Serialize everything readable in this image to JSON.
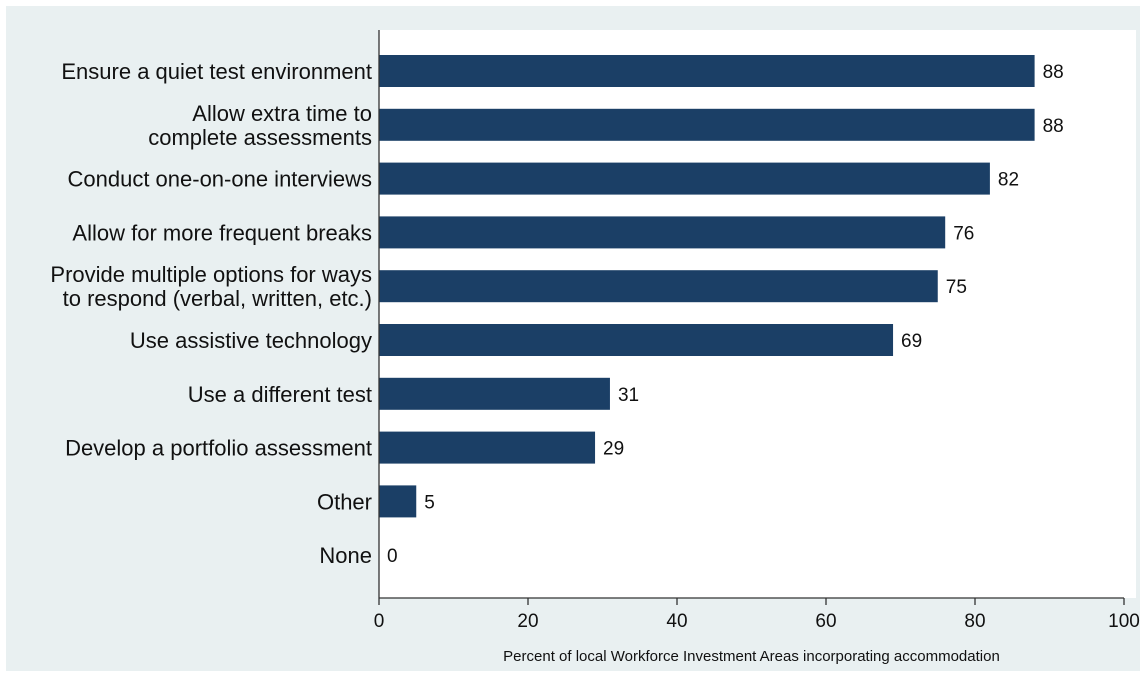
{
  "chart_data": {
    "type": "bar",
    "orientation": "horizontal",
    "categories": [
      [
        "Ensure a quiet test environment"
      ],
      [
        "Allow extra time to",
        "complete assessments"
      ],
      [
        "Conduct one-on-one interviews"
      ],
      [
        "Allow for more frequent breaks"
      ],
      [
        "Provide multiple options for ways",
        "to respond (verbal, written, etc.)"
      ],
      [
        "Use assistive technology"
      ],
      [
        "Use a different test"
      ],
      [
        "Develop a portfolio assessment"
      ],
      [
        "Other"
      ],
      [
        "None"
      ]
    ],
    "values": [
      88,
      88,
      82,
      76,
      75,
      69,
      31,
      29,
      5,
      0
    ],
    "value_labels": [
      "88",
      "88",
      "82",
      "76",
      "75",
      "69",
      "31",
      "29",
      "5",
      "0"
    ],
    "xlabel": "Percent of local Workforce Investment Areas incorporating accommodation",
    "ylabel": "",
    "title": "",
    "xlim": [
      0,
      100
    ],
    "xticks": [
      0,
      20,
      40,
      60,
      80,
      100
    ],
    "grid": false,
    "legend": "none",
    "colors": {
      "bar": "#1b3f66",
      "plot_background": "#ffffff",
      "outer_background": "#e9f0f1",
      "axis": "#333333"
    }
  }
}
